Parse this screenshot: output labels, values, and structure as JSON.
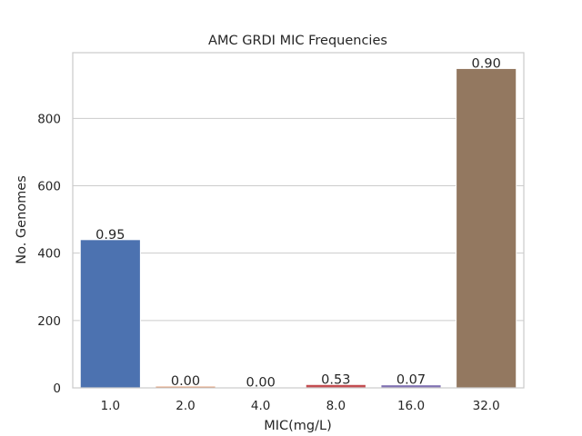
{
  "chart_data": {
    "type": "bar",
    "title": "AMC GRDI MIC Frequencies",
    "xlabel": "MIC(mg/L)",
    "ylabel": "No. Genomes",
    "categories": [
      "1.0",
      "2.0",
      "4.0",
      "8.0",
      "16.0",
      "32.0"
    ],
    "values": [
      440,
      5,
      2,
      10,
      9,
      948
    ],
    "bar_labels": [
      "0.95",
      "0.00",
      "0.00",
      "0.53",
      "0.07",
      "0.90"
    ],
    "colors": [
      "#4c72b0",
      "#dd8452",
      "#55a868",
      "#c44e52",
      "#8172b3",
      "#937860"
    ],
    "ylim": [
      0,
      995
    ],
    "yticks": [
      0,
      200,
      400,
      600,
      800
    ],
    "grid": true,
    "legend": "none"
  }
}
